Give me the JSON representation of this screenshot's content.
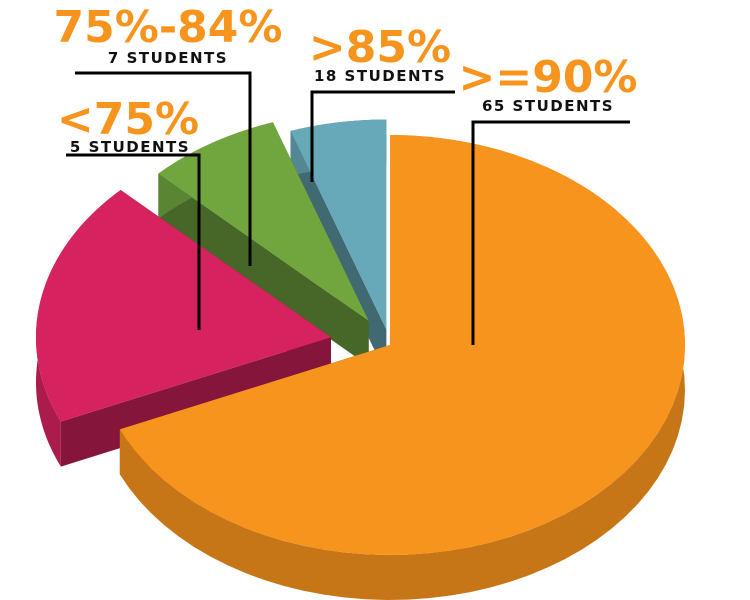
{
  "chart_data": {
    "type": "pie",
    "title": "",
    "categories": [
      ">=90%",
      ">85%",
      "75%-84%",
      "<75%"
    ],
    "values": [
      65,
      18,
      7,
      5
    ],
    "unit": "STUDENTS",
    "labels": [
      {
        "range": ">=90%",
        "count_text": "65 STUDENTS"
      },
      {
        "range": ">85%",
        "count_text": "18 STUDENTS"
      },
      {
        "range": "75%-84%",
        "count_text": "7 STUDENTS"
      },
      {
        "range": "<75%",
        "count_text": "5 STUDENTS"
      }
    ],
    "colors": {
      ">=90%": "#f7941d",
      ">85%": "#d6225f",
      "75%-84%": "#71a63f",
      "<75%": "#67a9b8"
    },
    "style": "3d-exploded",
    "legend": "none"
  }
}
